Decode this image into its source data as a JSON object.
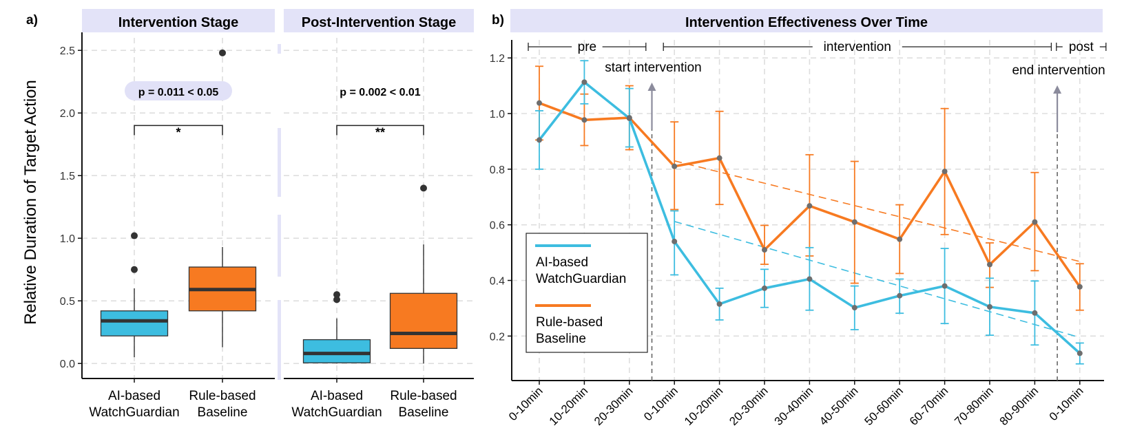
{
  "panels": {
    "a_label": "a)",
    "b_label": "b)"
  },
  "colors": {
    "ai": "#3dbde0",
    "rule": "#f77a21",
    "header_bg": "#e3e3f8",
    "annotation_bg": "#e1e1f7",
    "point": "#6e6e6e",
    "arrow": "#8b8b9c"
  },
  "chart_data": [
    {
      "type": "box",
      "panel": "a",
      "title": "Intervention Stage",
      "ylabel": "Relative Duration of Target Action",
      "ylim": [
        -0.12,
        2.6
      ],
      "yticks": [
        "0.0",
        "0.5",
        "1.0",
        "1.5",
        "2.0",
        "2.5"
      ],
      "grid": true,
      "categories": [
        "AI-based\nWatchGuardian",
        "Rule-based\nBaseline"
      ],
      "boxes": [
        {
          "name": "AI-based WatchGuardian",
          "whisker_low": 0.05,
          "q1": 0.22,
          "median": 0.34,
          "q3": 0.42,
          "whisker_high": 0.6,
          "outliers": [
            0.75,
            1.02
          ]
        },
        {
          "name": "Rule-based Baseline",
          "whisker_low": 0.13,
          "q1": 0.42,
          "median": 0.59,
          "q3": 0.77,
          "whisker_high": 0.93,
          "outliers": [
            2.48
          ]
        }
      ],
      "significance": {
        "label": "p = 0.011 < 0.05",
        "stars": "*",
        "bracket_y": 1.9
      }
    },
    {
      "type": "box",
      "panel": "a",
      "title": "Post-Intervention Stage",
      "ylim": [
        -0.12,
        2.6
      ],
      "grid": true,
      "categories": [
        "AI-based\nWatchGuardian",
        "Rule-based\nBaseline"
      ],
      "boxes": [
        {
          "name": "AI-based WatchGuardian",
          "whisker_low": 0.0,
          "q1": 0.005,
          "median": 0.08,
          "q3": 0.19,
          "whisker_high": 0.36,
          "outliers": [
            0.51,
            0.55
          ]
        },
        {
          "name": "Rule-based Baseline",
          "whisker_low": 0.0,
          "q1": 0.12,
          "median": 0.24,
          "q3": 0.56,
          "whisker_high": 0.95,
          "outliers": [
            1.4
          ]
        }
      ],
      "significance": {
        "label": "p = 0.002 < 0.01",
        "stars": "**",
        "bracket_y": 1.9
      }
    },
    {
      "type": "line",
      "panel": "b",
      "title": "Intervention Effectiveness Over Time",
      "ylim": [
        0.04,
        1.24
      ],
      "yticks": [
        "0.2",
        "0.4",
        "0.6",
        "0.8",
        "1.0",
        "1.2"
      ],
      "grid": true,
      "x": [
        "0-10min",
        "10-20min",
        "20-30min",
        "0-10min",
        "10-20min",
        "20-30min",
        "30-40min",
        "40-50min",
        "50-60min",
        "60-70min",
        "70-80min",
        "80-90min",
        "0-10min"
      ],
      "phases": [
        {
          "label": "pre",
          "from": 0,
          "to": 2
        },
        {
          "label": "intervention",
          "from": 3,
          "to": 11
        },
        {
          "label": "post",
          "from": 12,
          "to": 12
        }
      ],
      "markers": [
        {
          "label": "start intervention",
          "at": 2.5
        },
        {
          "label": "end intervention",
          "at": 11.5
        }
      ],
      "legend": {
        "position": "bottom-left",
        "entries": [
          "AI-based\nWatchGuardian",
          "Rule-based\nBaseline"
        ]
      },
      "series": [
        {
          "name": "AI-based\nWatchGuardian",
          "values": [
            0.905,
            1.113,
            0.983,
            0.54,
            0.315,
            0.372,
            0.405,
            0.302,
            0.345,
            0.38,
            0.305,
            0.283,
            0.138
          ],
          "err_low": [
            0.8,
            1.035,
            0.88,
            0.42,
            0.258,
            0.303,
            0.293,
            0.223,
            0.282,
            0.245,
            0.203,
            0.168,
            0.1
          ],
          "err_high": [
            1.01,
            1.19,
            1.09,
            0.65,
            0.372,
            0.44,
            0.518,
            0.38,
            0.405,
            0.515,
            0.408,
            0.398,
            0.175
          ],
          "trend": [
            0.612,
            0.195
          ]
        },
        {
          "name": "Rule-based\nBaseline",
          "values": [
            1.038,
            0.977,
            0.985,
            0.81,
            0.84,
            0.51,
            0.668,
            0.61,
            0.548,
            0.792,
            0.457,
            0.61,
            0.377
          ],
          "err_low": [
            0.905,
            0.885,
            0.87,
            0.655,
            0.673,
            0.458,
            0.488,
            0.39,
            0.425,
            0.565,
            0.375,
            0.435,
            0.293
          ],
          "err_high": [
            1.17,
            1.07,
            1.1,
            0.97,
            1.008,
            0.598,
            0.852,
            0.828,
            0.672,
            1.018,
            0.535,
            0.788,
            0.46
          ],
          "trend": [
            0.83,
            0.468
          ]
        }
      ]
    }
  ]
}
